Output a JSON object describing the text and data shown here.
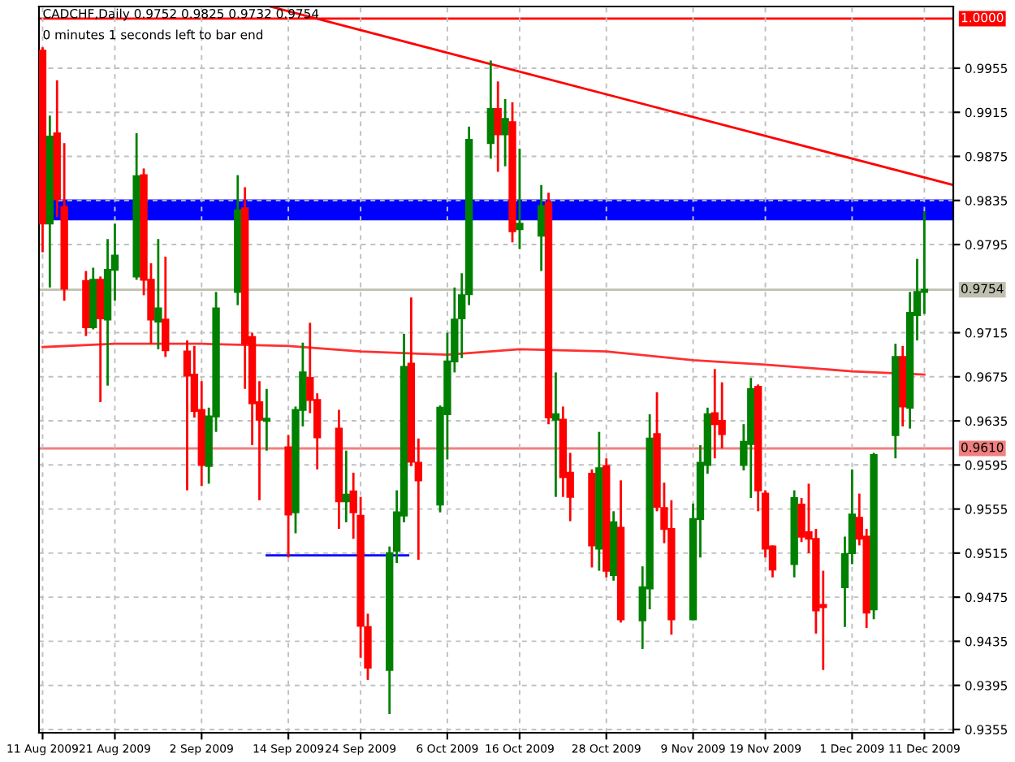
{
  "chart_data": {
    "type": "candlestick",
    "title": "CADCHF,Daily 0.9752 0.9825 0.9732 0.9754",
    "subtitle": "0 minutes 1 seconds left to bar end",
    "x": [
      "2009-08-11",
      "2009-08-12",
      "2009-08-13",
      "2009-08-14",
      "2009-08-17",
      "2009-08-18",
      "2009-08-19",
      "2009-08-20",
      "2009-08-21",
      "2009-08-24",
      "2009-08-25",
      "2009-08-26",
      "2009-08-27",
      "2009-08-28",
      "2009-08-31",
      "2009-09-01",
      "2009-09-02",
      "2009-09-03",
      "2009-09-04",
      "2009-09-07",
      "2009-09-08",
      "2009-09-09",
      "2009-09-10",
      "2009-09-11",
      "2009-09-14",
      "2009-09-15",
      "2009-09-16",
      "2009-09-17",
      "2009-09-18",
      "2009-09-21",
      "2009-09-22",
      "2009-09-23",
      "2009-09-24",
      "2009-09-25",
      "2009-09-28",
      "2009-09-29",
      "2009-09-30",
      "2009-10-01",
      "2009-10-02",
      "2009-10-05",
      "2009-10-06",
      "2009-10-07",
      "2009-10-08",
      "2009-10-09",
      "2009-10-12",
      "2009-10-13",
      "2009-10-14",
      "2009-10-15",
      "2009-10-16",
      "2009-10-19",
      "2009-10-20",
      "2009-10-21",
      "2009-10-22",
      "2009-10-23",
      "2009-10-26",
      "2009-10-27",
      "2009-10-28",
      "2009-10-29",
      "2009-10-30",
      "2009-11-02",
      "2009-11-03",
      "2009-11-04",
      "2009-11-05",
      "2009-11-06",
      "2009-11-09",
      "2009-11-10",
      "2009-11-11",
      "2009-11-12",
      "2009-11-13",
      "2009-11-16",
      "2009-11-17",
      "2009-11-18",
      "2009-11-19",
      "2009-11-20",
      "2009-11-23",
      "2009-11-24",
      "2009-11-25",
      "2009-11-26",
      "2009-11-27",
      "2009-11-30",
      "2009-12-01",
      "2009-12-02",
      "2009-12-03",
      "2009-12-04",
      "2009-12-07",
      "2009-12-08",
      "2009-12-09",
      "2009-12-10",
      "2009-12-11"
    ],
    "ohlc": [
      [
        0.9971,
        0.9974,
        0.9788,
        0.9814
      ],
      [
        0.9814,
        0.9912,
        0.9756,
        0.9893
      ],
      [
        0.9896,
        0.9944,
        0.982,
        0.9836
      ],
      [
        0.9829,
        0.9887,
        0.9744,
        0.9755
      ],
      [
        0.9762,
        0.9771,
        0.9712,
        0.972
      ],
      [
        0.972,
        0.9774,
        0.9718,
        0.9763
      ],
      [
        0.9763,
        0.9766,
        0.9652,
        0.9728
      ],
      [
        0.9727,
        0.98,
        0.9667,
        0.9772
      ],
      [
        0.9772,
        0.9814,
        0.9744,
        0.9785
      ],
      [
        0.9766,
        0.9896,
        0.9763,
        0.9857
      ],
      [
        0.9858,
        0.9864,
        0.9749,
        0.9763
      ],
      [
        0.9763,
        0.9778,
        0.9705,
        0.9727
      ],
      [
        0.9725,
        0.98,
        0.97,
        0.9737
      ],
      [
        0.9727,
        0.9784,
        0.9693,
        0.9699
      ],
      [
        0.9698,
        0.9708,
        0.9572,
        0.9676
      ],
      [
        0.9677,
        0.9703,
        0.9638,
        0.9644
      ],
      [
        0.9645,
        0.9671,
        0.9576,
        0.9595
      ],
      [
        0.9594,
        0.9647,
        0.9578,
        0.9639
      ],
      [
        0.9639,
        0.9752,
        0.9625,
        0.9737
      ],
      [
        0.9752,
        0.9858,
        0.974,
        0.9826
      ],
      [
        0.9828,
        0.9847,
        0.9664,
        0.9705
      ],
      [
        0.9711,
        0.9715,
        0.9613,
        0.9651
      ],
      [
        0.9652,
        0.9671,
        0.9563,
        0.9636
      ],
      [
        0.9635,
        0.9664,
        0.9608,
        0.9637
      ],
      [
        0.9611,
        0.9622,
        0.9511,
        0.955
      ],
      [
        0.9552,
        0.9648,
        0.9533,
        0.9645
      ],
      [
        0.9645,
        0.9706,
        0.963,
        0.9679
      ],
      [
        0.9674,
        0.9724,
        0.9642,
        0.9654
      ],
      [
        0.9654,
        0.966,
        0.9591,
        0.962
      ],
      [
        0.9628,
        0.9645,
        0.9537,
        0.9562
      ],
      [
        0.9562,
        0.9608,
        0.9543,
        0.9568
      ],
      [
        0.9571,
        0.9588,
        0.9528,
        0.9552
      ],
      [
        0.9549,
        0.9566,
        0.942,
        0.9449
      ],
      [
        0.9448,
        0.946,
        0.94,
        0.9411
      ],
      [
        0.9409,
        0.9521,
        0.9369,
        0.9515
      ],
      [
        0.9517,
        0.9572,
        0.9506,
        0.9552
      ],
      [
        0.9549,
        0.9714,
        0.9543,
        0.9684
      ],
      [
        0.9687,
        0.9747,
        0.9594,
        0.9598
      ],
      [
        0.9597,
        0.9619,
        0.9509,
        0.9581
      ],
      [
        0.9559,
        0.9649,
        0.9552,
        0.9647
      ],
      [
        0.9641,
        0.9715,
        0.96,
        0.9689
      ],
      [
        0.9689,
        0.9756,
        0.9679,
        0.9727
      ],
      [
        0.9728,
        0.9769,
        0.9692,
        0.9749
      ],
      [
        0.975,
        0.9902,
        0.974,
        0.989
      ],
      [
        0.9887,
        0.9962,
        0.9873,
        0.9918
      ],
      [
        0.9918,
        0.9943,
        0.9861,
        0.9895
      ],
      [
        0.9895,
        0.9927,
        0.9866,
        0.9909
      ],
      [
        0.9906,
        0.9924,
        0.9797,
        0.9807
      ],
      [
        0.9809,
        0.9882,
        0.9791,
        0.9814
      ],
      [
        0.9803,
        0.9849,
        0.9771,
        0.983
      ],
      [
        0.9833,
        0.9842,
        0.9632,
        0.9638
      ],
      [
        0.9636,
        0.9679,
        0.9566,
        0.9641
      ],
      [
        0.9636,
        0.9648,
        0.9566,
        0.9584
      ],
      [
        0.9588,
        0.9606,
        0.9544,
        0.9566
      ],
      [
        0.9587,
        0.9591,
        0.9502,
        0.9522
      ],
      [
        0.9519,
        0.9625,
        0.9499,
        0.9592
      ],
      [
        0.9594,
        0.9601,
        0.9493,
        0.9499
      ],
      [
        0.9495,
        0.9553,
        0.949,
        0.9543
      ],
      [
        0.9538,
        0.9581,
        0.9452,
        0.9455
      ],
      [
        0.9454,
        0.9503,
        0.9428,
        0.9484
      ],
      [
        0.9483,
        0.9641,
        0.9464,
        0.9619
      ],
      [
        0.9623,
        0.9661,
        0.9553,
        0.9557
      ],
      [
        0.9556,
        0.9579,
        0.9524,
        0.9537
      ],
      [
        0.9537,
        0.9563,
        0.9441,
        0.9455
      ],
      [
        0.9455,
        0.956,
        0.9454,
        0.9546
      ],
      [
        0.9546,
        0.9613,
        0.9511,
        0.9597
      ],
      [
        0.9595,
        0.9647,
        0.9587,
        0.9641
      ],
      [
        0.9642,
        0.9682,
        0.9601,
        0.9632
      ],
      [
        0.9635,
        0.967,
        0.961,
        0.9623
      ],
      [
        0.9595,
        0.9632,
        0.959,
        0.9616
      ],
      [
        0.9614,
        0.9674,
        0.9565,
        0.9664
      ],
      [
        0.9666,
        0.9668,
        0.9553,
        0.9572
      ],
      [
        0.9569,
        0.9572,
        0.9511,
        0.9519
      ],
      [
        0.9521,
        0.9522,
        0.9493,
        0.95
      ],
      [
        0.9505,
        0.9572,
        0.9493,
        0.9565
      ],
      [
        0.9559,
        0.9565,
        0.9525,
        0.953
      ],
      [
        0.9534,
        0.9578,
        0.9515,
        0.9528
      ],
      [
        0.9528,
        0.9537,
        0.9442,
        0.9463
      ],
      [
        0.9468,
        0.9499,
        0.9409,
        0.9466
      ],
      [
        0.9484,
        0.953,
        0.9448,
        0.9514
      ],
      [
        0.9515,
        0.9591,
        0.9505,
        0.955
      ],
      [
        0.9547,
        0.9569,
        0.9522,
        0.9528
      ],
      [
        0.953,
        0.9537,
        0.9447,
        0.9461
      ],
      [
        0.9464,
        0.9606,
        0.9455,
        0.9604
      ],
      [
        0.9622,
        0.9705,
        0.9601,
        0.9693
      ],
      [
        0.9693,
        0.9703,
        0.963,
        0.9648
      ],
      [
        0.9647,
        0.9752,
        0.9628,
        0.9733
      ],
      [
        0.9731,
        0.9782,
        0.9708,
        0.9752
      ],
      [
        0.9752,
        0.9825,
        0.9732,
        0.9754
      ]
    ],
    "colors": [
      "#ff0000",
      "#008000",
      "#ff0000",
      "#ff0000",
      "#ff0000",
      "#008000",
      "#ff0000",
      "#008000",
      "#008000",
      "#008000",
      "#ff0000",
      "#ff0000",
      "#008000",
      "#ff0000",
      "#ff0000",
      "#ff0000",
      "#ff0000",
      "#008000",
      "#008000",
      "#008000",
      "#ff0000",
      "#ff0000",
      "#ff0000",
      "#008000",
      "#ff0000",
      "#008000",
      "#008000",
      "#ff0000",
      "#ff0000",
      "#ff0000",
      "#008000",
      "#ff0000",
      "#ff0000",
      "#ff0000",
      "#008000",
      "#008000",
      "#008000",
      "#ff0000",
      "#ff0000",
      "#008000",
      "#008000",
      "#008000",
      "#008000",
      "#008000",
      "#008000",
      "#ff0000",
      "#008000",
      "#ff0000",
      "#008000",
      "#008000",
      "#ff0000",
      "#008000",
      "#ff0000",
      "#ff0000",
      "#ff0000",
      "#008000",
      "#ff0000",
      "#008000",
      "#ff0000",
      "#008000",
      "#008000",
      "#ff0000",
      "#ff0000",
      "#ff0000",
      "#008000",
      "#008000",
      "#008000",
      "#ff0000",
      "#ff0000",
      "#008000",
      "#008000",
      "#ff0000",
      "#ff0000",
      "#ff0000",
      "#008000",
      "#ff0000",
      "#ff0000",
      "#ff0000",
      "#ff0000",
      "#008000",
      "#008000",
      "#ff0000",
      "#ff0000",
      "#008000",
      "#008000",
      "#ff0000",
      "#008000",
      "#008000",
      "#008000"
    ],
    "series": [
      {
        "type": "line",
        "color": "#ff3030",
        "x": [
          "2009-08-11",
          "2009-08-21",
          "2009-09-02",
          "2009-09-14",
          "2009-09-24",
          "2009-10-06",
          "2009-10-16",
          "2009-10-28",
          "2009-11-09",
          "2009-11-19",
          "2009-12-01",
          "2009-12-11"
        ],
        "values": [
          0.9702,
          0.9705,
          0.9705,
          0.9703,
          0.9698,
          0.9695,
          0.97,
          0.9698,
          0.969,
          0.9686,
          0.968,
          0.9677
        ]
      },
      {
        "type": "line",
        "color": "#ff0000",
        "x": [
          "2009-09-11T12:00",
          "2009-12-15T00:00"
        ],
        "values": [
          1.0011,
          0.9849
        ]
      },
      {
        "type": "line",
        "color": "#0000ff",
        "x": [
          "2009-09-11",
          "2009-09-30T14:00"
        ],
        "values": [
          0.9513,
          0.9513
        ]
      }
    ],
    "ref_lines": [
      {
        "axis": "y",
        "value": 1.0,
        "label": "1.0000",
        "color": "#ff0000"
      },
      {
        "axis": "y",
        "value": 0.9754,
        "label": "0.9754",
        "color": "#c0c0b0",
        "line_style": "solid"
      },
      {
        "axis": "y",
        "value": 0.961,
        "label": "0.9610",
        "color": "#f08080"
      }
    ],
    "bands": [
      {
        "axis": "y",
        "from": 0.9817,
        "to": 0.9836,
        "color": "#0000ff"
      }
    ],
    "xlim": [
      "2009-08-10T12:00",
      "2009-12-15T00:00"
    ],
    "xticks": [
      {
        "value": "2009-08-11",
        "label": "11 Aug 2009"
      },
      {
        "value": "2009-08-21",
        "label": "21 Aug 2009"
      },
      {
        "value": "2009-09-02",
        "label": "2 Sep 2009"
      },
      {
        "value": "2009-09-14",
        "label": "14 Sep 2009"
      },
      {
        "value": "2009-09-24",
        "label": "24 Sep 2009"
      },
      {
        "value": "2009-10-06",
        "label": "6 Oct 2009"
      },
      {
        "value": "2009-10-16",
        "label": "16 Oct 2009"
      },
      {
        "value": "2009-10-28",
        "label": "28 Oct 2009"
      },
      {
        "value": "2009-11-09",
        "label": "9 Nov 2009"
      },
      {
        "value": "2009-11-19",
        "label": "19 Nov 2009"
      },
      {
        "value": "2009-12-01",
        "label": "1 Dec 2009"
      },
      {
        "value": "2009-12-11",
        "label": "11 Dec 2009"
      }
    ],
    "ylim": [
      0.9352,
      1.0011
    ],
    "yticks": [
      0.9355,
      0.9395,
      0.9435,
      0.9475,
      0.9515,
      0.9555,
      0.9595,
      0.9635,
      0.9675,
      0.9715,
      0.9795,
      0.9835,
      0.9875,
      0.9915,
      0.9955
    ],
    "grid": true
  }
}
